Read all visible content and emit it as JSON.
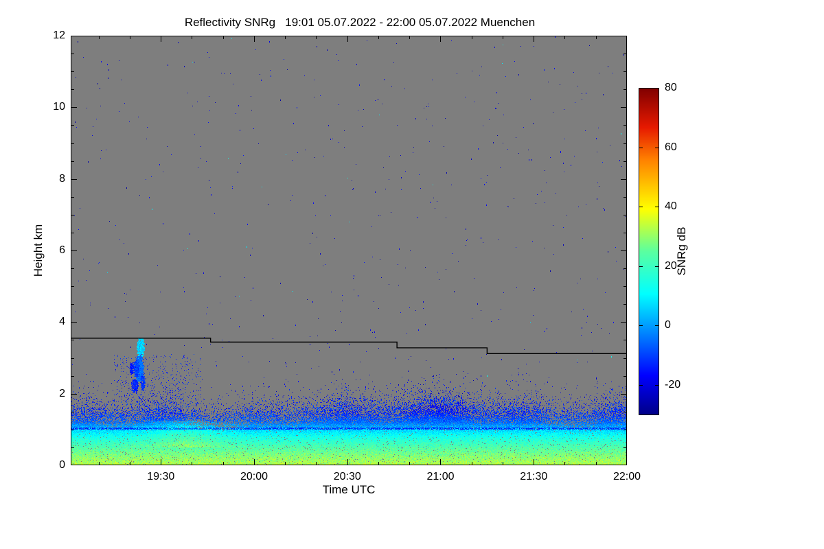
{
  "chart_data": {
    "type": "heatmap",
    "title": "Reflectivity SNRg   19:01 05.07.2022 - 22:00 05.07.2022 Muenchen",
    "title_parts": {
      "quantity": "Reflectivity SNRg",
      "time_start_utc": "19:01",
      "time_end_utc": "22:00",
      "date": "05.07.2022",
      "station": "Muenchen"
    },
    "xlabel": "Time UTC",
    "ylabel": "Height km",
    "ylim_km": [
      0,
      12
    ],
    "x_range_minutes": [
      0,
      179
    ],
    "grid": false,
    "plot_background_color": "#7e7e7e",
    "x_ticks": [
      {
        "label": "19:30",
        "t": 29
      },
      {
        "label": "20:00",
        "t": 59
      },
      {
        "label": "20:30",
        "t": 89
      },
      {
        "label": "21:00",
        "t": 119
      },
      {
        "label": "21:30",
        "t": 149
      },
      {
        "label": "22:00",
        "t": 179
      }
    ],
    "x_minor_ticks_minutes": [
      9,
      19,
      39,
      49,
      69,
      79,
      99,
      109,
      129,
      139,
      159,
      169
    ],
    "y_ticks": [
      {
        "label": "0",
        "h": 0
      },
      {
        "label": "2",
        "h": 2
      },
      {
        "label": "4",
        "h": 4
      },
      {
        "label": "6",
        "h": 6
      },
      {
        "label": "8",
        "h": 8
      },
      {
        "label": "10",
        "h": 10
      },
      {
        "label": "12",
        "h": 12
      }
    ],
    "y_minor_step_km": 0.5,
    "colorbar": {
      "label": "SNRg dB",
      "position": "right",
      "vmin": -30,
      "vmax": 80,
      "ticks": [
        {
          "label": "80",
          "v": 80
        },
        {
          "label": "60",
          "v": 60
        },
        {
          "label": "40",
          "v": 40
        },
        {
          "label": "20",
          "v": 20
        },
        {
          "label": "0",
          "v": 0
        },
        {
          "label": "-20",
          "v": -20
        }
      ]
    },
    "colormap": {
      "name": "jet",
      "stops": [
        {
          "t": 0.0,
          "rgb": [
            0,
            0,
            135
          ]
        },
        {
          "t": 0.12,
          "rgb": [
            0,
            0,
            255
          ]
        },
        {
          "t": 0.37,
          "rgb": [
            0,
            255,
            255
          ]
        },
        {
          "t": 0.5,
          "rgb": [
            90,
            255,
            160
          ]
        },
        {
          "t": 0.63,
          "rgb": [
            255,
            255,
            0
          ]
        },
        {
          "t": 0.78,
          "rgb": [
            255,
            130,
            0
          ]
        },
        {
          "t": 0.88,
          "rgb": [
            230,
            25,
            0
          ]
        },
        {
          "t": 1.0,
          "rgb": [
            128,
            0,
            0
          ]
        }
      ]
    },
    "range_limit_line": {
      "color": "#000000",
      "segments_km": [
        {
          "t0": 0,
          "t1": 45,
          "h": 3.55
        },
        {
          "t0": 45,
          "t1": 105,
          "h": 3.44
        },
        {
          "t0": 105,
          "t1": 134,
          "h": 3.28
        },
        {
          "t0": 134,
          "t1": 179,
          "h": 3.12
        }
      ]
    },
    "boundary_layer": {
      "description": "Boundary-layer echoes: ~30 dB (yellow-green) near ground, decreasing to ~-20 dB (dark blue) by ~1.8 km; speckled blue fringe above",
      "base_km": 1.3,
      "dark_line_km": 1.04,
      "waviness": [
        {
          "f": 0.021,
          "a": 0.12,
          "p": 0.5
        },
        {
          "f": 0.047,
          "a": 0.08,
          "p": 1.7
        },
        {
          "f": 0.0113,
          "a": 0.05,
          "p": 3.0
        }
      ],
      "value_profile": [
        [
          0,
          33
        ],
        [
          0.3,
          28
        ],
        [
          0.55,
          22
        ],
        [
          0.8,
          14
        ],
        [
          1.0,
          6
        ],
        [
          1.2,
          -5
        ],
        [
          1.5,
          -14
        ],
        [
          2.0,
          -21
        ]
      ],
      "bumps": [
        {
          "t": 36,
          "w": 9,
          "amp": 0.25
        },
        {
          "t": 115,
          "w": 15,
          "amp": 0.42
        },
        {
          "t": 174,
          "w": 10,
          "amp": 0.28
        }
      ],
      "cyan_boost": {
        "t": 37,
        "w": 8,
        "amp": 7
      }
    },
    "noise": {
      "background_speckle_count": 650,
      "bright_speckle_fraction": 0.04,
      "layer_fringe_count": 2600
    },
    "plume": {
      "description": "Isolated echo plume ~19:20-19:26 UTC between 2 and 3.5 km",
      "blobs": [
        {
          "t": 22.6,
          "h0": 3.0,
          "h1": 3.55,
          "w": 5,
          "v": 6
        },
        {
          "t": 22.2,
          "h0": 2.35,
          "h1": 3.05,
          "w": 6,
          "v": -5
        },
        {
          "t": 21.2,
          "h0": 2.5,
          "h1": 2.95,
          "w": 4,
          "v": -10
        },
        {
          "t": 20.7,
          "h0": 2.05,
          "h1": 2.4,
          "w": 5,
          "v": -13
        },
        {
          "t": 23.3,
          "h0": 2.1,
          "h1": 2.5,
          "w": 3,
          "v": -11
        },
        {
          "t": 19.7,
          "h0": 2.55,
          "h1": 2.85,
          "w": 3,
          "v": -14
        }
      ],
      "speckle_region": {
        "t0": 14,
        "t1": 42,
        "h0": 1.7,
        "h1": 3.1,
        "count": 420
      }
    }
  }
}
